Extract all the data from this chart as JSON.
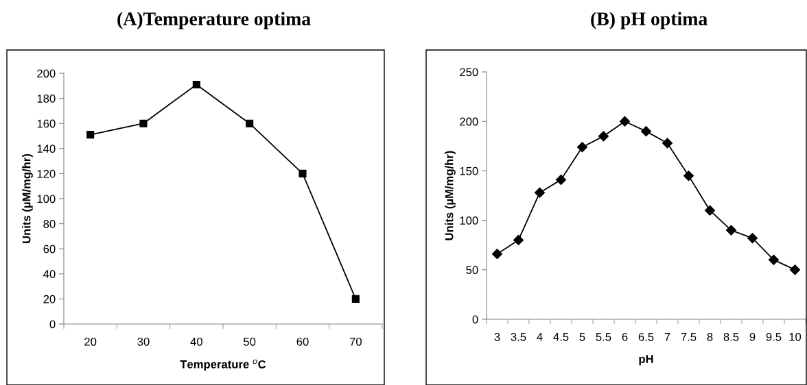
{
  "chart_data": [
    {
      "type": "line",
      "title": "(A)Temperature optima",
      "xlabel": "Temperature $^{o}$C",
      "ylabel": "Units (µM/mg/hr)",
      "categories": [
        "20",
        "30",
        "40",
        "50",
        "60",
        "70"
      ],
      "series": [
        {
          "color": "#000000",
          "values": [
            151,
            160,
            191,
            160,
            120,
            20
          ]
        }
      ],
      "ylim": [
        0,
        200
      ],
      "yticks": [
        0,
        20,
        40,
        60,
        80,
        100,
        120,
        140,
        160,
        180,
        200
      ],
      "grid": false,
      "legend": false,
      "marker": "square",
      "line_style": "solid"
    },
    {
      "type": "line",
      "title": "(B) pH optima",
      "xlabel": "pH",
      "ylabel": "Units (µM/mg/hr)",
      "categories": [
        "3",
        "3.5",
        "4",
        "4.5",
        "5",
        "5.5",
        "6",
        "6.5",
        "7",
        "7.5",
        "8",
        "8.5",
        "9",
        "9.5",
        "10"
      ],
      "series": [
        {
          "color": "#000000",
          "values": [
            66,
            80,
            128,
            141,
            174,
            185,
            200,
            190,
            178,
            145,
            110,
            90,
            82,
            60,
            50
          ]
        }
      ],
      "ylim": [
        0,
        250
      ],
      "yticks": [
        0,
        50,
        100,
        150,
        200,
        250
      ],
      "grid": false,
      "legend": false,
      "marker": "diamond",
      "line_style": "solid"
    }
  ]
}
